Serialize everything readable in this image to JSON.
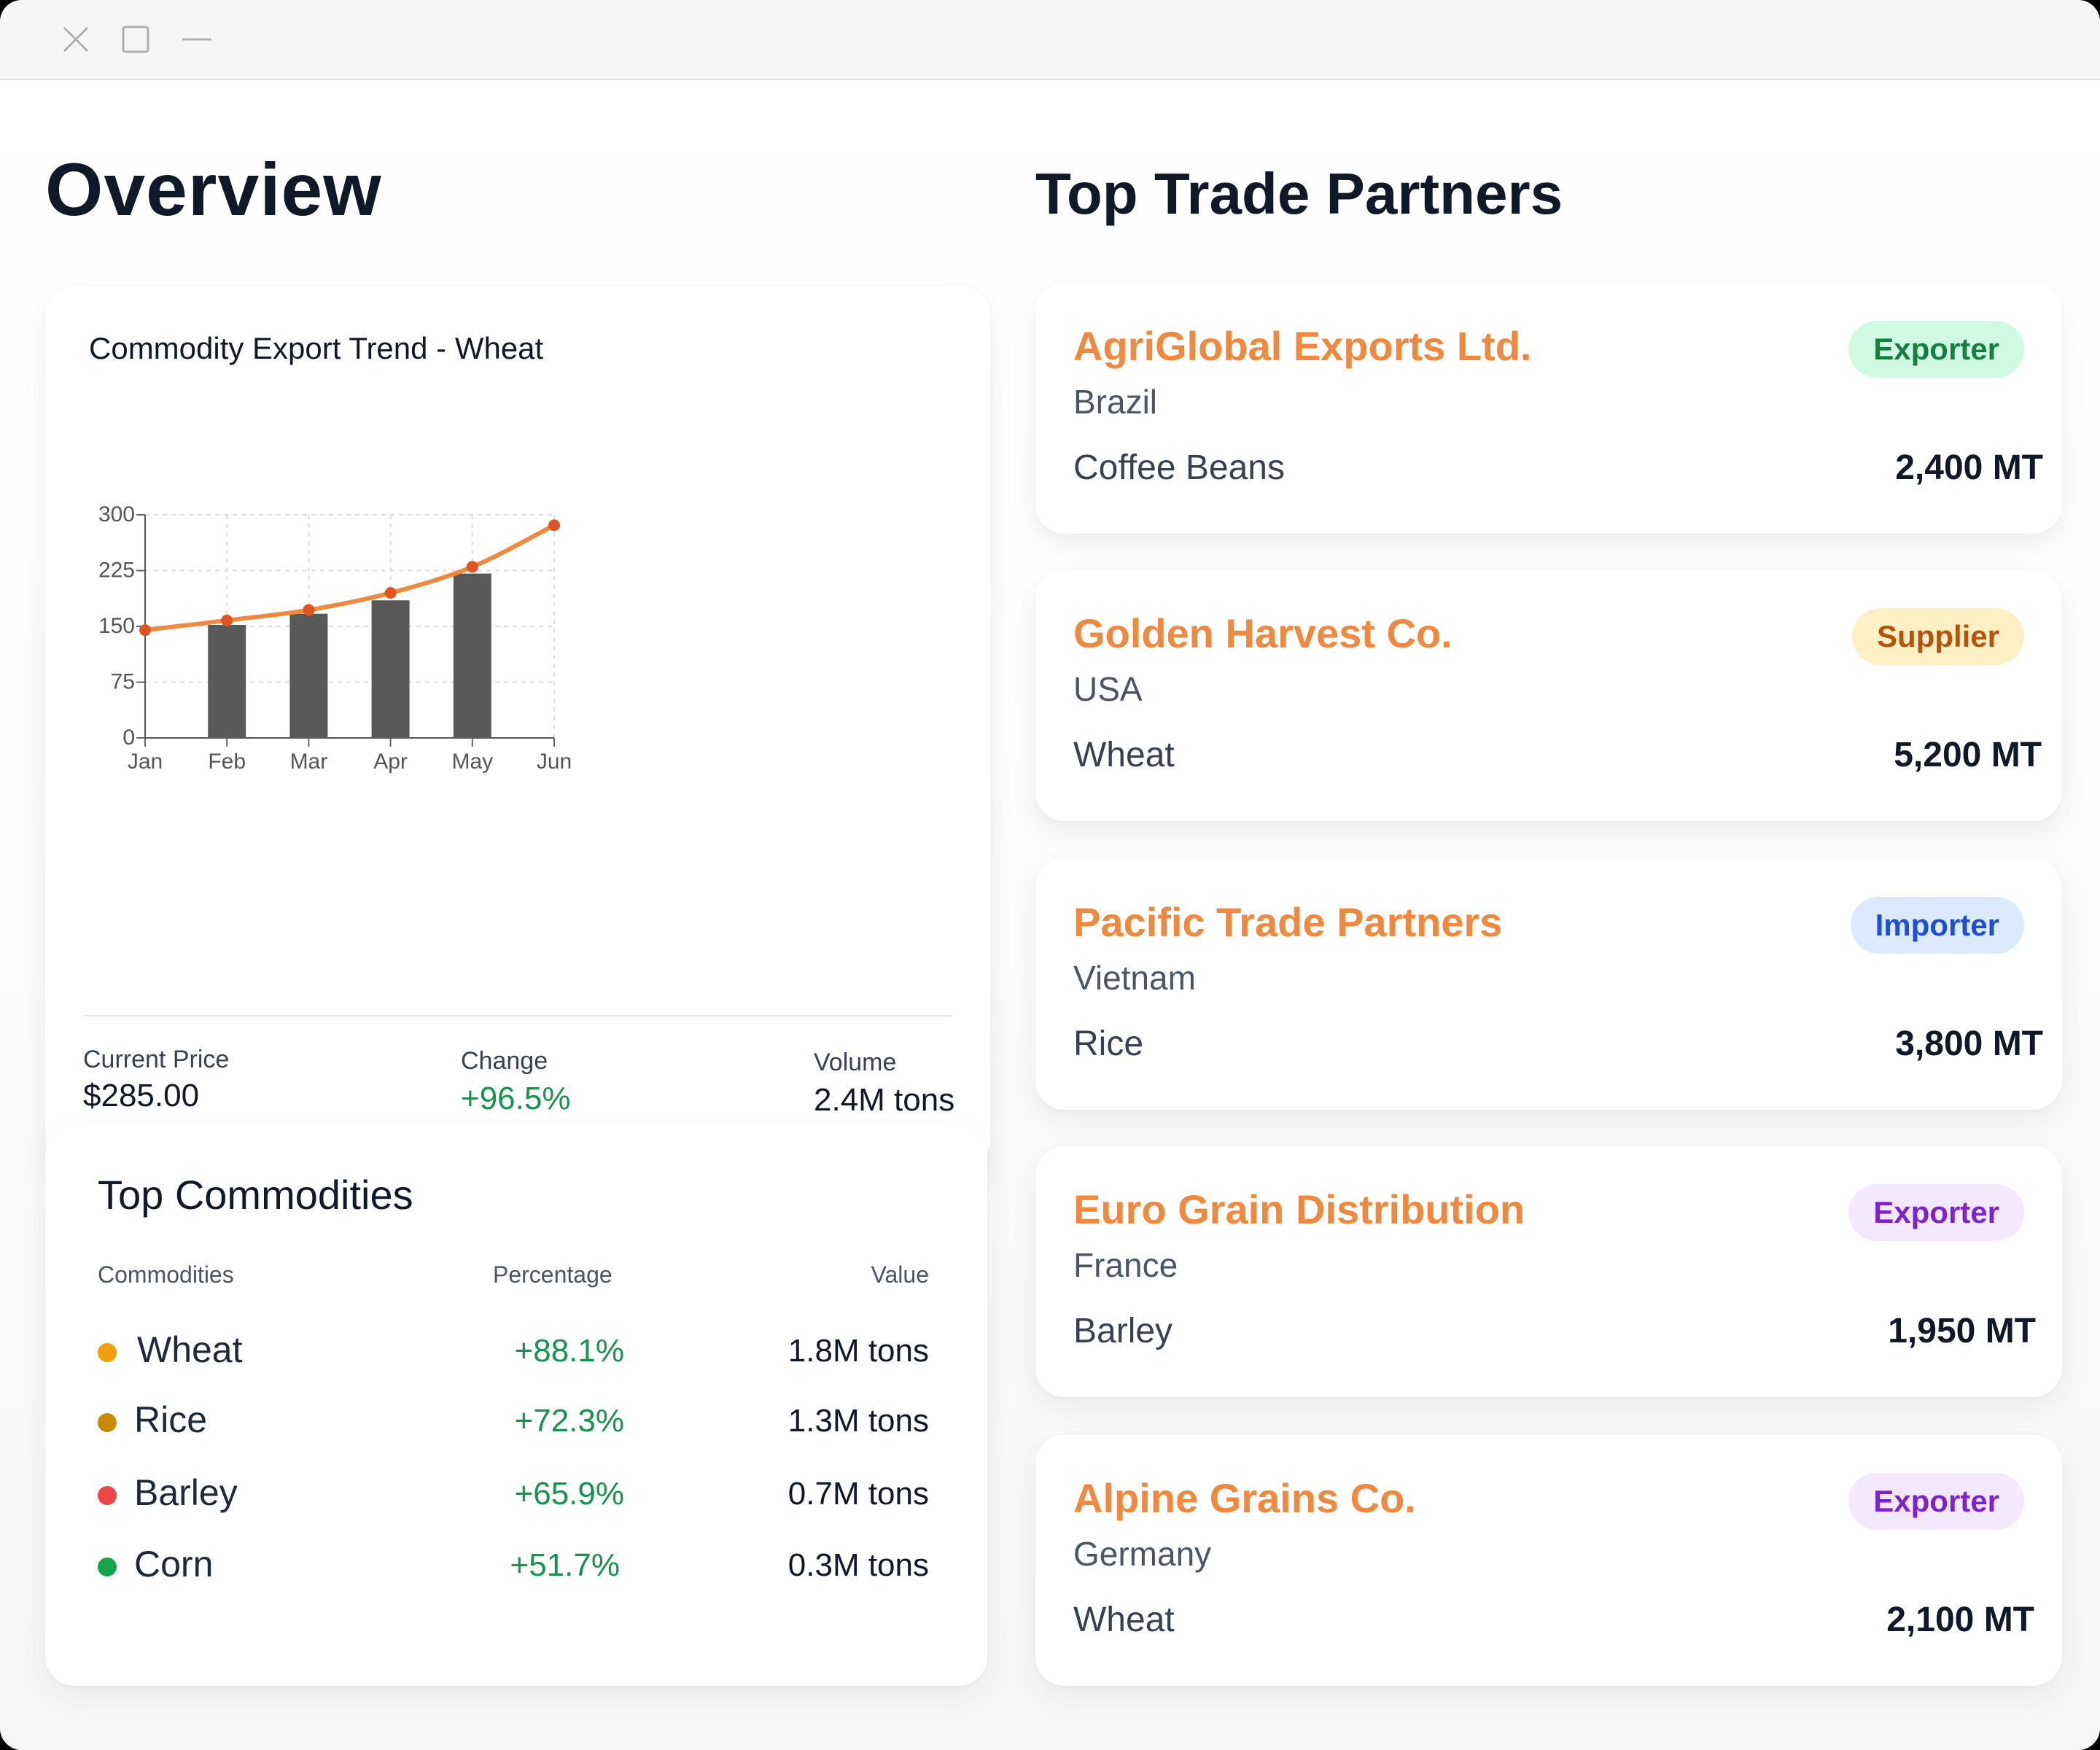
{
  "window": {
    "controls": [
      {
        "name": "close-icon",
        "label": "close"
      },
      {
        "name": "maximize-icon",
        "label": "maximize"
      },
      {
        "name": "minimize-icon",
        "label": "minimize"
      }
    ]
  },
  "overview": {
    "title": "Overview"
  },
  "export_chart": {
    "title": "Commodity Export Trend - Wheat",
    "stats": [
      {
        "label": "Current Price",
        "value": "$285.00"
      },
      {
        "label": "Change",
        "value": "+96.5%"
      },
      {
        "label": "Volume",
        "value": "2.4M tons"
      }
    ]
  },
  "chart_data": {
    "type": "bar",
    "title": "Commodity Export Trend - Wheat",
    "xlabel": "",
    "ylabel": "",
    "categories": [
      "Jan",
      "Feb",
      "Mar",
      "Apr",
      "May",
      "Jun"
    ],
    "ylim": [
      0,
      300
    ],
    "yticks": [
      0,
      75,
      150,
      225,
      300
    ],
    "grid": true,
    "series": [
      {
        "type": "bar",
        "values": [
          null,
          152,
          167,
          185,
          221,
          null
        ],
        "color": "#595959"
      },
      {
        "type": "line",
        "values": [
          145,
          158,
          172,
          195,
          230,
          286
        ],
        "color": "#f0883e",
        "marker_color": "#e0541f"
      }
    ]
  },
  "top_commodities": {
    "title": "Top Commodities",
    "headers": {
      "commodities": "Commodities",
      "percentage": "Percentage",
      "value": "Value"
    },
    "rows": [
      {
        "name": "Wheat",
        "percentage": "+88.1%",
        "value": "1.8M tons",
        "color": "#f59e0b"
      },
      {
        "name": "Rice",
        "percentage": "+72.3%",
        "value": "1.3M tons",
        "color": "#ca8a04"
      },
      {
        "name": "Barley",
        "percentage": "+65.9%",
        "value": "0.7M tons",
        "color": "#ef4444"
      },
      {
        "name": "Corn",
        "percentage": "+51.7%",
        "value": "0.3M tons",
        "color": "#16a34a"
      }
    ]
  },
  "trade_partners": {
    "title": "Top Trade Partners",
    "items": [
      {
        "name": "AgriGlobal Exports Ltd.",
        "country": "Brazil",
        "commodity": "Coffee Beans",
        "amount": "2,400 MT",
        "badge": "Exporter",
        "badge_bg": "#d1fae5",
        "badge_fg": "#15803d"
      },
      {
        "name": "Golden Harvest Co.",
        "country": "USA",
        "commodity": "Wheat",
        "amount": "5,200 MT",
        "badge": "Supplier",
        "badge_bg": "#fdf0c4",
        "badge_fg": "#b45309"
      },
      {
        "name": "Pacific Trade Partners",
        "country": "Vietnam",
        "commodity": "Rice",
        "amount": "3,800 MT",
        "badge": "Importer",
        "badge_bg": "#dbeafe",
        "badge_fg": "#1d4ed8"
      },
      {
        "name": "Euro Grain Distribution",
        "country": "France",
        "commodity": "Barley",
        "amount": "1,950 MT",
        "badge": "Exporter",
        "badge_bg": "#f3e8ff",
        "badge_fg": "#7e22ce"
      },
      {
        "name": "Alpine Grains Co.",
        "country": "Germany",
        "commodity": "Wheat",
        "amount": "2,100 MT",
        "badge": "Exporter",
        "badge_bg": "#f3e8ff",
        "badge_fg": "#7e22ce"
      }
    ]
  }
}
